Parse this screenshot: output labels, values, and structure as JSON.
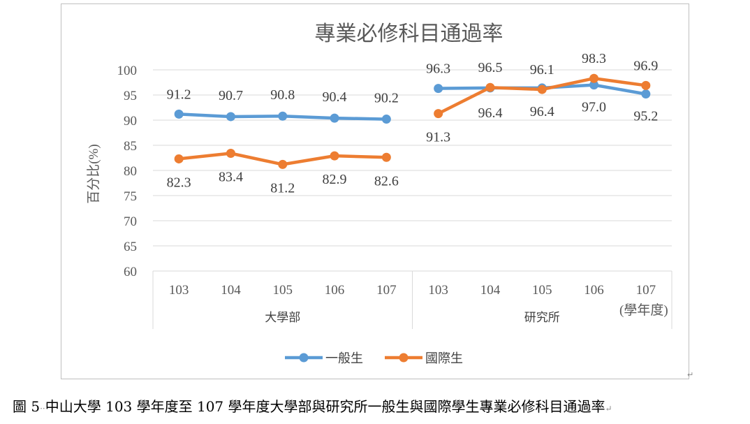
{
  "chart_data": {
    "type": "line",
    "title": "專業必修科目通過率",
    "ylabel": "百分比(%)",
    "ylim": [
      60,
      100
    ],
    "yticks": [
      60,
      65,
      70,
      75,
      80,
      85,
      90,
      95,
      100
    ],
    "categories": [
      "103",
      "104",
      "105",
      "106",
      "107",
      "103",
      "104",
      "105",
      "106",
      "107"
    ],
    "groups": [
      {
        "label": "大學部",
        "start": 0,
        "end": 4
      },
      {
        "label": "研究所",
        "start": 5,
        "end": 9
      }
    ],
    "x_unit_label": "(學年度)",
    "grid": true,
    "legend_position": "bottom",
    "series": [
      {
        "name": "一般生",
        "color": "#5b9bd5",
        "values": [
          91.2,
          90.7,
          90.8,
          90.4,
          90.2,
          96.3,
          96.4,
          96.4,
          97.0,
          95.2
        ],
        "labels": [
          "91.2",
          "90.7",
          "90.8",
          "90.4",
          "90.2",
          "96.3",
          "96.4",
          "96.4",
          "97.0",
          "95.2"
        ]
      },
      {
        "name": "國際生",
        "color": "#ed7d31",
        "values": [
          82.3,
          83.4,
          81.2,
          82.9,
          82.6,
          91.3,
          96.5,
          96.1,
          98.3,
          96.9
        ],
        "labels": [
          "82.3",
          "83.4",
          "81.2",
          "82.9",
          "82.6",
          "91.3",
          "96.5",
          "96.1",
          "98.3",
          "96.9"
        ]
      }
    ]
  },
  "caption": {
    "prefix": "圖 5",
    "marks": "··",
    "text": "中山大學 103 學年度至 107 學年度大學部與研究所一般生與國際學生專業必修科目通過率",
    "end_mark": "↵"
  },
  "frame_end_mark": "↵"
}
